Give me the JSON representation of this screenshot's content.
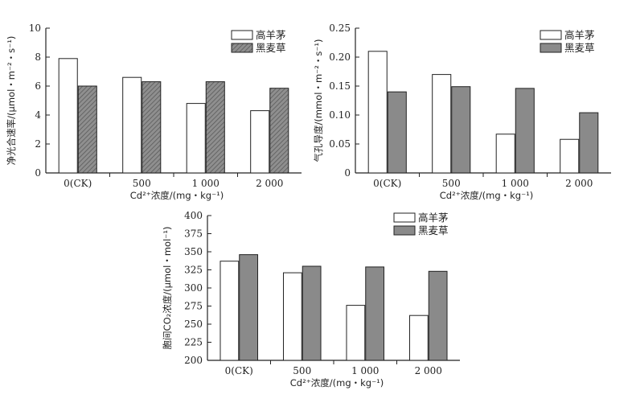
{
  "chart_data": [
    {
      "type": "bar",
      "categories": [
        "0(CK)",
        "500",
        "1 000",
        "2 000"
      ],
      "series": [
        {
          "name": "高羊茅",
          "values": [
            7.9,
            6.6,
            4.8,
            4.3
          ]
        },
        {
          "name": "黑麦草",
          "values": [
            6.0,
            6.3,
            6.3,
            5.85
          ]
        }
      ],
      "xlabel": "Cd²⁺浓度/(mg・kg⁻¹)",
      "ylabel": "净光合速率/(μmol・m⁻²・s⁻¹)",
      "ylim": [
        0,
        10
      ],
      "yticks": [
        "0",
        "2",
        "4",
        "6",
        "8",
        "10"
      ],
      "legend": "top-right",
      "series_colors": [
        "#ffffff",
        "#8a8a8a"
      ]
    },
    {
      "type": "bar",
      "categories": [
        "0(CK)",
        "500",
        "1 000",
        "2 000"
      ],
      "series": [
        {
          "name": "高羊茅",
          "values": [
            0.21,
            0.17,
            0.067,
            0.058
          ]
        },
        {
          "name": "黑麦草",
          "values": [
            0.14,
            0.149,
            0.146,
            0.104
          ]
        }
      ],
      "xlabel": "Cd²⁺浓度/(mg・kg⁻¹)",
      "ylabel": "气孔导度/(mmol・m⁻²・s⁻¹)",
      "ylim": [
        0,
        0.25
      ],
      "yticks": [
        "0",
        "0.05",
        "0.10",
        "0.15",
        "0.20",
        "0.25"
      ],
      "legend": "top-right",
      "series_colors": [
        "#ffffff",
        "#8a8a8a"
      ]
    },
    {
      "type": "bar",
      "categories": [
        "0(CK)",
        "500",
        "1 000",
        "2 000"
      ],
      "series": [
        {
          "name": "高羊茅",
          "values": [
            337,
            321,
            276,
            262
          ]
        },
        {
          "name": "黑麦草",
          "values": [
            346,
            330,
            329,
            323
          ]
        }
      ],
      "xlabel": "Cd²⁺浓度/(mg・kg⁻¹)",
      "ylabel": "胞间CO₂浓度/(μmol・mol⁻¹)",
      "ylim": [
        200,
        400
      ],
      "yticks": [
        "200",
        "225",
        "250",
        "275",
        "300",
        "325",
        "350",
        "375",
        "400"
      ],
      "legend": "top-right",
      "series_colors": [
        "#ffffff",
        "#8a8a8a"
      ]
    }
  ]
}
